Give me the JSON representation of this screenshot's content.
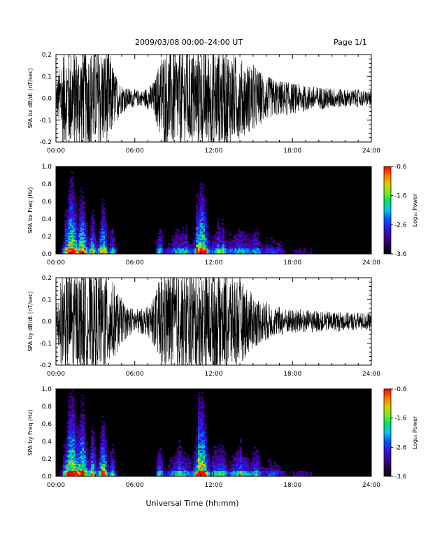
{
  "header": {
    "title": "2009/03/08  00:00–24:00 UT",
    "page": "Page 1/1"
  },
  "chart_data": [
    {
      "type": "line",
      "ylabel": "SPA bx dB/dt (nT/sec)",
      "x_ticks": [
        "00:00",
        "06:00",
        "12:00",
        "18:00",
        "24:00"
      ],
      "y_ticks": [
        "0.2",
        "0.1",
        "0.0",
        "-0.1",
        "-0.2"
      ],
      "xlim": [
        0,
        24
      ],
      "ylim": [
        -0.2,
        0.2
      ],
      "series": [
        {
          "x": [
            0,
            0.5,
            1,
            1.5,
            2,
            2.5,
            3,
            3.5,
            4,
            4.5,
            5,
            5.5,
            6,
            6.5,
            7,
            7.5,
            8,
            8.5,
            9,
            9.5,
            10,
            10.5,
            11,
            11.5,
            12,
            12.5,
            13,
            13.5,
            14,
            14.5,
            15,
            15.5,
            16,
            16.5,
            17,
            17.5,
            18,
            18.5,
            19,
            19.5,
            20,
            20.5,
            21,
            21.5,
            22,
            22.5,
            23,
            23.5,
            24
          ],
          "values": [
            0.05,
            0.2,
            0.2,
            0.2,
            0.2,
            0.2,
            0.2,
            0.2,
            0.2,
            0.1,
            0.06,
            0.04,
            0.035,
            0.03,
            0.045,
            0.07,
            0.18,
            0.2,
            0.2,
            0.2,
            0.2,
            0.2,
            0.2,
            0.2,
            0.2,
            0.2,
            0.2,
            0.18,
            0.16,
            0.14,
            0.14,
            0.11,
            0.09,
            0.08,
            0.07,
            0.07,
            0.06,
            0.06,
            0.05,
            0.05,
            0.045,
            0.045,
            0.04,
            0.04,
            0.035,
            0.035,
            0.035,
            0.03,
            0.03
          ]
        }
      ]
    },
    {
      "type": "heatmap",
      "ylabel": "SPA bx Freq (Hz)",
      "x_ticks": [
        "00:00",
        "06:00",
        "12:00",
        "18:00",
        "24:00"
      ],
      "y_ticks": [
        "1.0",
        "0.8",
        "0.6",
        "0.4",
        "0.2",
        "0.0"
      ],
      "xlim": [
        0,
        24
      ],
      "ylim": [
        0,
        1.0
      ],
      "colorbar": {
        "label": "Log₁₀ Power",
        "ticks": [
          "-0.6",
          "-1.6",
          "-2.6",
          "-3.6"
        ],
        "range": [
          -3.6,
          -0.6
        ]
      }
    },
    {
      "type": "line",
      "ylabel": "SPA by dB/dt (nT/sec)",
      "x_ticks": [
        "00:00",
        "06:00",
        "12:00",
        "18:00",
        "24:00"
      ],
      "y_ticks": [
        "0.2",
        "0.1",
        "0.0",
        "-0.1",
        "-0.2"
      ],
      "xlim": [
        0,
        24
      ],
      "ylim": [
        -0.2,
        0.2
      ],
      "series": [
        {
          "x": [
            0,
            0.5,
            1,
            1.5,
            2,
            2.5,
            3,
            3.5,
            4,
            4.5,
            5,
            5.5,
            6,
            6.5,
            7,
            7.5,
            8,
            8.5,
            9,
            9.5,
            10,
            10.5,
            11,
            11.5,
            12,
            12.5,
            13,
            13.5,
            14,
            14.5,
            15,
            15.5,
            16,
            16.5,
            17,
            17.5,
            18,
            18.5,
            19,
            19.5,
            20,
            20.5,
            21,
            21.5,
            22,
            22.5,
            23,
            23.5,
            24
          ],
          "values": [
            0.07,
            0.2,
            0.2,
            0.2,
            0.2,
            0.2,
            0.2,
            0.2,
            0.2,
            0.14,
            0.09,
            0.06,
            0.05,
            0.05,
            0.06,
            0.1,
            0.2,
            0.2,
            0.2,
            0.2,
            0.2,
            0.2,
            0.2,
            0.2,
            0.2,
            0.2,
            0.2,
            0.2,
            0.17,
            0.14,
            0.11,
            0.09,
            0.08,
            0.06,
            0.06,
            0.05,
            0.05,
            0.05,
            0.045,
            0.045,
            0.04,
            0.04,
            0.04,
            0.04,
            0.035,
            0.035,
            0.035,
            0.035,
            0.035
          ]
        }
      ]
    },
    {
      "type": "heatmap",
      "ylabel": "SPA by Freq (Hz)",
      "xlabel": "Universal Time (hh:mm)",
      "x_ticks": [
        "00:00",
        "06:00",
        "12:00",
        "18:00",
        "24:00"
      ],
      "y_ticks": [
        "1.0",
        "0.8",
        "0.6",
        "0.4",
        "0.2",
        "0.0"
      ],
      "xlim": [
        0,
        24
      ],
      "ylim": [
        0,
        1.0
      ],
      "colorbar": {
        "label": "Log₁₀ Power",
        "ticks": [
          "-0.6",
          "-1.6",
          "-2.6",
          "-3.6"
        ],
        "range": [
          -3.6,
          -0.6
        ]
      }
    }
  ]
}
